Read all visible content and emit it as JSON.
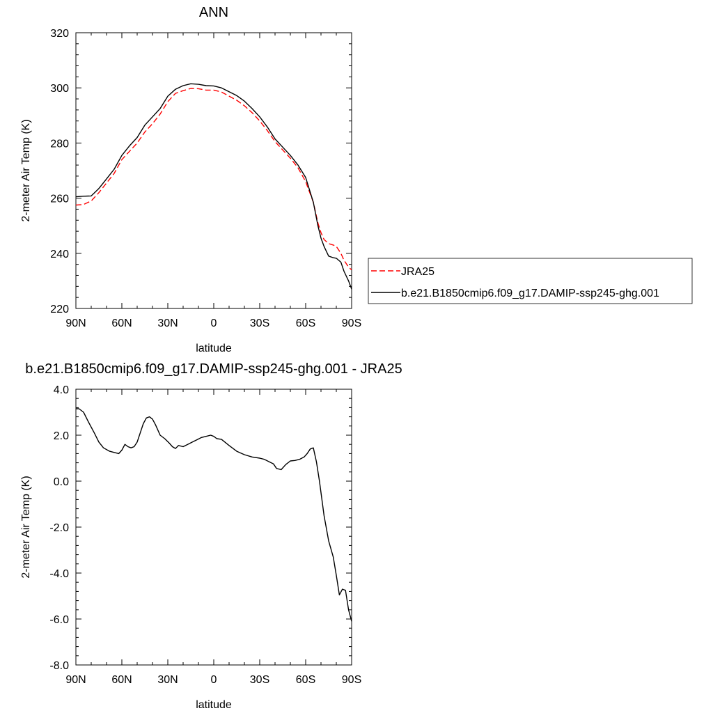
{
  "chart_data": [
    {
      "type": "line",
      "title": "ANN",
      "xlabel": "latitude",
      "ylabel": "2-meter Air Temp (K)",
      "x_direction": "north-to-south",
      "xlim": [
        90,
        -90
      ],
      "ylim": [
        220,
        320
      ],
      "xticks": [
        {
          "value": 90,
          "label": "90N"
        },
        {
          "value": 60,
          "label": "60N"
        },
        {
          "value": 30,
          "label": "30N"
        },
        {
          "value": 0,
          "label": "0"
        },
        {
          "value": -30,
          "label": "30S"
        },
        {
          "value": -60,
          "label": "60S"
        },
        {
          "value": -90,
          "label": "90S"
        }
      ],
      "yticks": [
        {
          "value": 220,
          "label": "220"
        },
        {
          "value": 240,
          "label": "240"
        },
        {
          "value": 260,
          "label": "260"
        },
        {
          "value": 280,
          "label": "280"
        },
        {
          "value": 300,
          "label": "300"
        },
        {
          "value": 320,
          "label": "320"
        }
      ],
      "grid": false,
      "legend_position": "right",
      "series": [
        {
          "name": "JRA25",
          "color": "#ff0000",
          "dash": "dashed",
          "x": [
            90,
            85,
            80,
            75,
            70,
            65,
            60,
            55,
            50,
            45,
            40,
            35,
            30,
            25,
            20,
            15,
            10,
            5,
            0,
            -5,
            -10,
            -15,
            -20,
            -25,
            -30,
            -35,
            -40,
            -45,
            -50,
            -55,
            -60,
            -65,
            -68,
            -70,
            -72,
            -75,
            -78,
            -80,
            -83,
            -85,
            -88,
            -90
          ],
          "y": [
            257.5,
            257.7,
            259.0,
            262.0,
            265.5,
            269.0,
            274.0,
            277.0,
            280.0,
            284.0,
            287.0,
            290.5,
            295.0,
            298.0,
            299.0,
            299.8,
            299.7,
            299.2,
            299.2,
            298.5,
            297.0,
            295.5,
            293.5,
            291.0,
            288.0,
            284.5,
            280.5,
            277.5,
            274.5,
            271.0,
            266.0,
            258.5,
            251.0,
            247.5,
            245.0,
            243.5,
            243.0,
            242.5,
            240.0,
            237.5,
            235.0,
            234.0
          ]
        },
        {
          "name": "b.e21.B1850cmip6.f09_g17.DAMIP-ssp245-ghg.001",
          "color": "#000000",
          "dash": "solid",
          "x": [
            90,
            85,
            80,
            75,
            70,
            65,
            60,
            55,
            50,
            45,
            40,
            35,
            30,
            25,
            20,
            15,
            10,
            5,
            0,
            -5,
            -10,
            -15,
            -20,
            -25,
            -30,
            -35,
            -40,
            -45,
            -50,
            -55,
            -60,
            -65,
            -68,
            -70,
            -72,
            -75,
            -78,
            -80,
            -83,
            -85,
            -88,
            -90
          ],
          "y": [
            260.5,
            260.7,
            260.8,
            263.5,
            267.0,
            270.5,
            275.5,
            279.0,
            282.0,
            286.5,
            289.5,
            292.5,
            297.0,
            299.5,
            300.8,
            301.5,
            301.3,
            300.8,
            300.7,
            300.0,
            298.6,
            297.2,
            295.2,
            292.5,
            289.5,
            285.8,
            281.5,
            278.5,
            275.5,
            272.0,
            267.5,
            258.5,
            250.0,
            245.5,
            242.5,
            239.0,
            238.4,
            238.2,
            236.8,
            233.5,
            230.0,
            227.0
          ]
        }
      ]
    },
    {
      "type": "line",
      "title": "b.e21.B1850cmip6.f09_g17.DAMIP-ssp245-ghg.001 - JRA25",
      "xlabel": "latitude",
      "ylabel": "2-meter Air Temp (K)",
      "x_direction": "north-to-south",
      "xlim": [
        90,
        -90
      ],
      "ylim": [
        -8.0,
        4.0
      ],
      "xticks": [
        {
          "value": 90,
          "label": "90N"
        },
        {
          "value": 60,
          "label": "60N"
        },
        {
          "value": 30,
          "label": "30N"
        },
        {
          "value": 0,
          "label": "0"
        },
        {
          "value": -30,
          "label": "30S"
        },
        {
          "value": -60,
          "label": "60S"
        },
        {
          "value": -90,
          "label": "90S"
        }
      ],
      "yticks": [
        {
          "value": -8.0,
          "label": "-8.0"
        },
        {
          "value": -6.0,
          "label": "-6.0"
        },
        {
          "value": -4.0,
          "label": "-4.0"
        },
        {
          "value": -2.0,
          "label": "-2.0"
        },
        {
          "value": 0.0,
          "label": "0.0"
        },
        {
          "value": 2.0,
          "label": "2.0"
        },
        {
          "value": 4.0,
          "label": "4.0"
        }
      ],
      "grid": false,
      "series": [
        {
          "color": "#000000",
          "dash": "solid",
          "x": [
            90,
            88,
            85,
            82,
            78,
            75,
            72,
            68,
            65,
            62,
            60,
            58,
            56,
            54,
            52,
            50,
            48,
            46,
            44,
            42,
            40,
            38,
            35,
            32,
            29,
            27,
            25,
            23,
            20,
            17,
            14,
            11,
            8,
            5,
            2,
            0,
            -2,
            -5,
            -10,
            -15,
            -20,
            -25,
            -30,
            -33,
            -36,
            -39,
            -41,
            -44,
            -47,
            -50,
            -53,
            -56,
            -59,
            -61,
            -63,
            -65,
            -67,
            -69,
            -72,
            -75,
            -78,
            -80,
            -82,
            -84,
            -86,
            -88,
            -90
          ],
          "y": [
            3.15,
            3.15,
            3.0,
            2.6,
            2.1,
            1.7,
            1.45,
            1.3,
            1.25,
            1.2,
            1.35,
            1.6,
            1.5,
            1.45,
            1.5,
            1.7,
            2.1,
            2.5,
            2.75,
            2.8,
            2.7,
            2.45,
            2.0,
            1.85,
            1.65,
            1.5,
            1.42,
            1.55,
            1.5,
            1.6,
            1.7,
            1.8,
            1.9,
            1.95,
            2.0,
            1.95,
            1.85,
            1.82,
            1.55,
            1.3,
            1.15,
            1.05,
            1.0,
            0.95,
            0.85,
            0.75,
            0.55,
            0.5,
            0.72,
            0.88,
            0.9,
            0.95,
            1.05,
            1.2,
            1.4,
            1.45,
            0.85,
            0.0,
            -1.5,
            -2.6,
            -3.3,
            -4.1,
            -4.95,
            -4.7,
            -4.75,
            -5.6,
            -6.1
          ]
        }
      ]
    }
  ]
}
